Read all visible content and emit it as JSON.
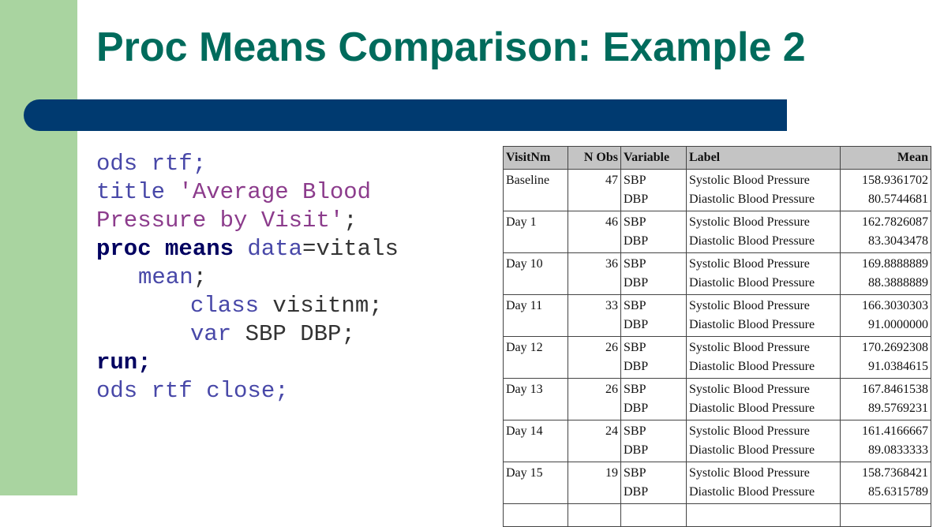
{
  "title": "Proc Means Comparison: Example 2",
  "code": [
    [
      "ods rtf;"
    ],
    [
      "title ",
      "'Average Blood"
    ],
    [
      "Pressure by Visit'",
      ";"
    ],
    [
      "proc means",
      " data",
      "=vitals"
    ],
    [
      "mean",
      ";"
    ],
    [
      "class",
      " visitnm;"
    ],
    [
      "var",
      " SBP DBP;"
    ],
    [
      "run;"
    ],
    [
      "ods rtf close;"
    ]
  ],
  "table": {
    "header": [
      "VisitNm",
      "N Obs",
      "Variable",
      "Label",
      "Mean"
    ],
    "rows": [
      {
        "visit": "Baseline",
        "n": 47,
        "variables": [
          "SBP",
          "DBP"
        ],
        "labels": [
          "Systolic Blood Pressure",
          "Diastolic Blood Pressure"
        ],
        "means": [
          "158.9361702",
          "80.5744681"
        ]
      },
      {
        "visit": "Day 1",
        "n": 46,
        "variables": [
          "SBP",
          "DBP"
        ],
        "labels": [
          "Systolic Blood Pressure",
          "Diastolic Blood Pressure"
        ],
        "means": [
          "162.7826087",
          "83.3043478"
        ]
      },
      {
        "visit": "Day 10",
        "n": 36,
        "variables": [
          "SBP",
          "DBP"
        ],
        "labels": [
          "Systolic Blood Pressure",
          "Diastolic Blood Pressure"
        ],
        "means": [
          "169.8888889",
          "88.3888889"
        ]
      },
      {
        "visit": "Day 11",
        "n": 33,
        "variables": [
          "SBP",
          "DBP"
        ],
        "labels": [
          "Systolic Blood Pressure",
          "Diastolic Blood Pressure"
        ],
        "means": [
          "166.3030303",
          "91.0000000"
        ]
      },
      {
        "visit": "Day 12",
        "n": 26,
        "variables": [
          "SBP",
          "DBP"
        ],
        "labels": [
          "Systolic Blood Pressure",
          "Diastolic Blood Pressure"
        ],
        "means": [
          "170.2692308",
          "91.0384615"
        ]
      },
      {
        "visit": "Day 13",
        "n": 26,
        "variables": [
          "SBP",
          "DBP"
        ],
        "labels": [
          "Systolic Blood Pressure",
          "Diastolic Blood Pressure"
        ],
        "means": [
          "167.8461538",
          "89.5769231"
        ]
      },
      {
        "visit": "Day 14",
        "n": 24,
        "variables": [
          "SBP",
          "DBP"
        ],
        "labels": [
          "Systolic Blood Pressure",
          "Diastolic Blood Pressure"
        ],
        "means": [
          "161.4166667",
          "89.0833333"
        ]
      },
      {
        "visit": "Day 15",
        "n": 19,
        "variables": [
          "SBP",
          "DBP"
        ],
        "labels": [
          "Systolic Blood Pressure",
          "Diastolic Blood Pressure"
        ],
        "means": [
          "158.7368421",
          "85.6315789"
        ]
      }
    ]
  }
}
